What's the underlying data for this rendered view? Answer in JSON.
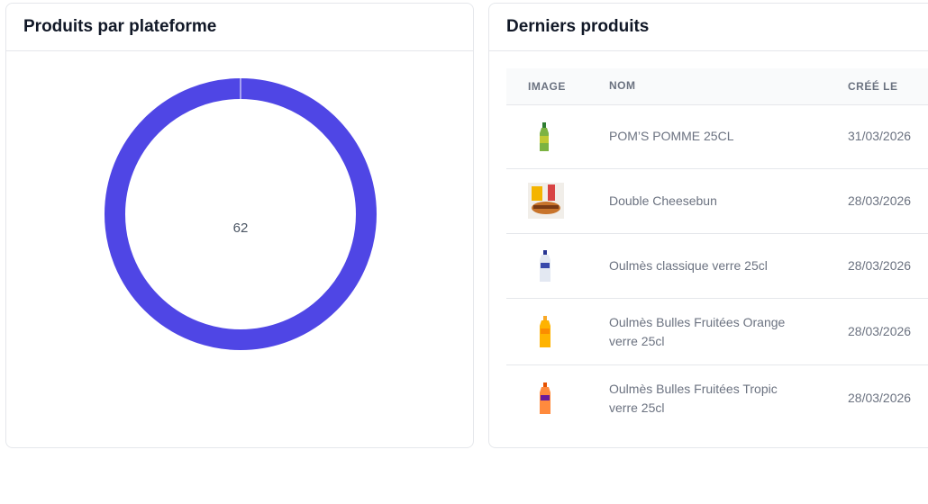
{
  "chart_data": {
    "type": "donut",
    "title": "Produits par plateforme",
    "values": [
      62
    ],
    "color": "#4f46e5"
  },
  "latest": {
    "title": "Derniers produits",
    "headers": [
      "IMAGE",
      "NOM",
      "CRÉÉ LE"
    ],
    "rows": [
      [
        "POM’S POMME 25CL",
        "31/03/2026"
      ],
      [
        "Double Cheesebun",
        "28/03/2026"
      ],
      [
        "Oulmès classique verre 25cl",
        "28/03/2026"
      ],
      [
        "Oulmès Bulles Fruitées Orange verre 25cl",
        "28/03/2026"
      ],
      [
        "Oulmès Bulles Fruitées Tropic verre 25cl",
        "28/03/2026"
      ]
    ]
  }
}
